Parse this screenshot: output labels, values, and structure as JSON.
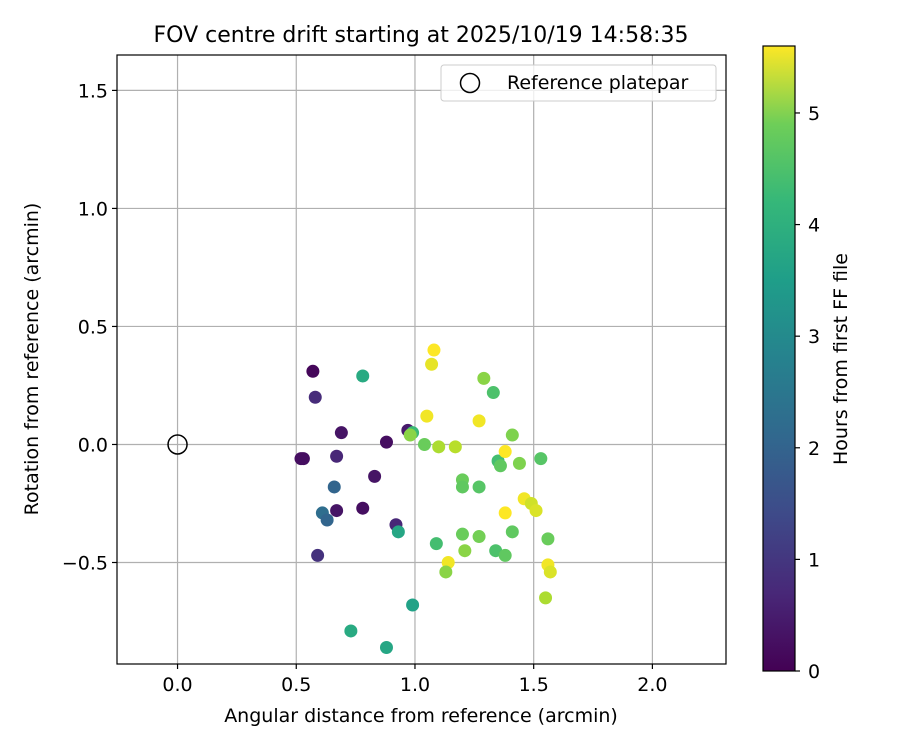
{
  "chart_data": {
    "type": "scatter",
    "title": "FOV centre drift starting at 2025/10/19 14:58:35",
    "xlabel": "Angular distance from reference (arcmin)",
    "ylabel": "Rotation from reference (arcmin)",
    "xlim": [
      -0.255,
      2.31
    ],
    "ylim": [
      -0.93,
      1.65
    ],
    "xticks": [
      0.0,
      0.5,
      1.0,
      1.5,
      2.0
    ],
    "xtick_labels": [
      "0.0",
      "0.5",
      "1.0",
      "1.5",
      "2.0"
    ],
    "yticks": [
      -0.5,
      0.0,
      0.5,
      1.0,
      1.5
    ],
    "ytick_labels": [
      "−0.5",
      "0.0",
      "0.5",
      "1.0",
      "1.5"
    ],
    "grid": true,
    "legend": {
      "position": "top-right",
      "entries": [
        "Reference platepar"
      ]
    },
    "reference_point": {
      "label": "Reference platepar",
      "x": 0.0,
      "y": 0.0,
      "marker": "open-circle"
    },
    "colorbar": {
      "label": "Hours from first FF file",
      "colormap": "viridis",
      "range": [
        0,
        5.6
      ],
      "ticks": [
        0,
        1,
        2,
        3,
        4,
        5
      ],
      "tick_labels": [
        "0",
        "1",
        "2",
        "3",
        "4",
        "5"
      ]
    },
    "points": [
      {
        "x": 0.57,
        "y": 0.31,
        "hours": 0.1
      },
      {
        "x": 0.58,
        "y": 0.2,
        "hours": 0.7
      },
      {
        "x": 0.69,
        "y": 0.05,
        "hours": 0.3
      },
      {
        "x": 0.52,
        "y": -0.06,
        "hours": 0.2
      },
      {
        "x": 0.53,
        "y": -0.06,
        "hours": 0.2
      },
      {
        "x": 0.67,
        "y": -0.05,
        "hours": 0.6
      },
      {
        "x": 0.83,
        "y": -0.135,
        "hours": 0.3
      },
      {
        "x": 0.88,
        "y": 0.01,
        "hours": 0.2
      },
      {
        "x": 0.97,
        "y": 0.06,
        "hours": 0.4
      },
      {
        "x": 0.66,
        "y": -0.18,
        "hours": 1.8
      },
      {
        "x": 0.67,
        "y": -0.28,
        "hours": 0.3
      },
      {
        "x": 0.78,
        "y": -0.27,
        "hours": 0.2
      },
      {
        "x": 0.61,
        "y": -0.29,
        "hours": 2.0
      },
      {
        "x": 0.63,
        "y": -0.32,
        "hours": 1.8
      },
      {
        "x": 0.59,
        "y": -0.47,
        "hours": 0.8
      },
      {
        "x": 0.92,
        "y": -0.34,
        "hours": 0.6
      },
      {
        "x": 0.93,
        "y": -0.37,
        "hours": 3.3
      },
      {
        "x": 0.78,
        "y": 0.29,
        "hours": 3.4
      },
      {
        "x": 0.99,
        "y": 0.05,
        "hours": 3.8
      },
      {
        "x": 0.73,
        "y": -0.79,
        "hours": 3.4
      },
      {
        "x": 0.88,
        "y": -0.86,
        "hours": 3.3
      },
      {
        "x": 0.99,
        "y": -0.68,
        "hours": 3.2
      },
      {
        "x": 1.08,
        "y": 0.4,
        "hours": 5.6
      },
      {
        "x": 1.07,
        "y": 0.34,
        "hours": 5.4
      },
      {
        "x": 1.05,
        "y": 0.12,
        "hours": 5.5
      },
      {
        "x": 0.98,
        "y": 0.04,
        "hours": 4.6
      },
      {
        "x": 1.04,
        "y": 0.0,
        "hours": 4.3
      },
      {
        "x": 1.1,
        "y": -0.01,
        "hours": 4.9
      },
      {
        "x": 1.17,
        "y": -0.01,
        "hours": 5.0
      },
      {
        "x": 1.29,
        "y": 0.28,
        "hours": 4.6
      },
      {
        "x": 1.33,
        "y": 0.22,
        "hours": 4.0
      },
      {
        "x": 1.27,
        "y": 0.1,
        "hours": 5.5
      },
      {
        "x": 1.41,
        "y": 0.04,
        "hours": 4.5
      },
      {
        "x": 1.35,
        "y": -0.07,
        "hours": 3.9
      },
      {
        "x": 1.36,
        "y": -0.09,
        "hours": 4.2
      },
      {
        "x": 1.38,
        "y": -0.03,
        "hours": 5.6
      },
      {
        "x": 1.44,
        "y": -0.08,
        "hours": 4.5
      },
      {
        "x": 1.53,
        "y": -0.06,
        "hours": 4.1
      },
      {
        "x": 1.2,
        "y": -0.15,
        "hours": 4.3
      },
      {
        "x": 1.2,
        "y": -0.18,
        "hours": 4.2
      },
      {
        "x": 1.27,
        "y": -0.18,
        "hours": 4.1
      },
      {
        "x": 1.46,
        "y": -0.23,
        "hours": 5.5
      },
      {
        "x": 1.49,
        "y": -0.25,
        "hours": 5.2
      },
      {
        "x": 1.51,
        "y": -0.28,
        "hours": 5.3
      },
      {
        "x": 1.38,
        "y": -0.29,
        "hours": 5.6
      },
      {
        "x": 1.09,
        "y": -0.42,
        "hours": 3.9
      },
      {
        "x": 1.2,
        "y": -0.38,
        "hours": 4.3
      },
      {
        "x": 1.27,
        "y": -0.39,
        "hours": 4.4
      },
      {
        "x": 1.41,
        "y": -0.37,
        "hours": 4.2
      },
      {
        "x": 1.21,
        "y": -0.45,
        "hours": 4.6
      },
      {
        "x": 1.34,
        "y": -0.45,
        "hours": 4.0
      },
      {
        "x": 1.38,
        "y": -0.47,
        "hours": 4.2
      },
      {
        "x": 1.56,
        "y": -0.4,
        "hours": 4.3
      },
      {
        "x": 1.14,
        "y": -0.5,
        "hours": 5.5
      },
      {
        "x": 1.13,
        "y": -0.54,
        "hours": 4.6
      },
      {
        "x": 1.56,
        "y": -0.51,
        "hours": 5.5
      },
      {
        "x": 1.57,
        "y": -0.54,
        "hours": 5.3
      },
      {
        "x": 1.55,
        "y": -0.65,
        "hours": 4.9
      }
    ]
  }
}
